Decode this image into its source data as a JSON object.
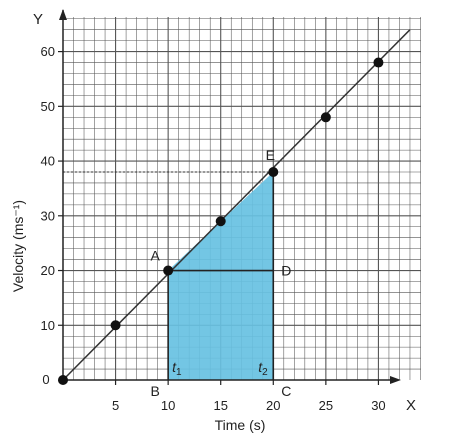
{
  "chart_data": {
    "type": "line",
    "title": "",
    "xlabel": "Time (s)",
    "ylabel": "Velocity (ms⁻¹)",
    "xlim": [
      0,
      35
    ],
    "ylim": [
      0,
      67
    ],
    "x_ticks": [
      0,
      5,
      10,
      15,
      20,
      25,
      30
    ],
    "y_ticks": [
      10,
      20,
      30,
      40,
      50,
      60
    ],
    "x_axis_letter": "X",
    "y_axis_letter": "Y",
    "origin_label": "0",
    "grid": true,
    "series": [
      {
        "x": [
          0,
          5,
          10,
          15,
          20,
          25,
          30
        ],
        "y": [
          0,
          10,
          20,
          29,
          38,
          48,
          58
        ]
      }
    ],
    "line": {
      "x": [
        0,
        33
      ],
      "y": [
        0,
        64
      ]
    },
    "points": [
      {
        "label": "A",
        "x": 10,
        "y": 20
      },
      {
        "label": "B",
        "x": 10,
        "y": 0
      },
      {
        "label": "C",
        "x": 20,
        "y": 0
      },
      {
        "label": "D",
        "x": 20,
        "y": 20
      },
      {
        "label": "E",
        "x": 20,
        "y": 38
      }
    ],
    "time_marks": [
      {
        "label": "t",
        "sub": "1",
        "x": 10
      },
      {
        "label": "t",
        "sub": "2",
        "x": 20
      }
    ],
    "shaded_region": {
      "vertices": [
        "A",
        "E",
        "C",
        "B"
      ],
      "color": "#67c1e2"
    },
    "dashed_guide_y": 38,
    "colors": {
      "grid": "#555555",
      "line": "#333333",
      "marker": "#111111",
      "shade": "#67c1e2"
    }
  }
}
